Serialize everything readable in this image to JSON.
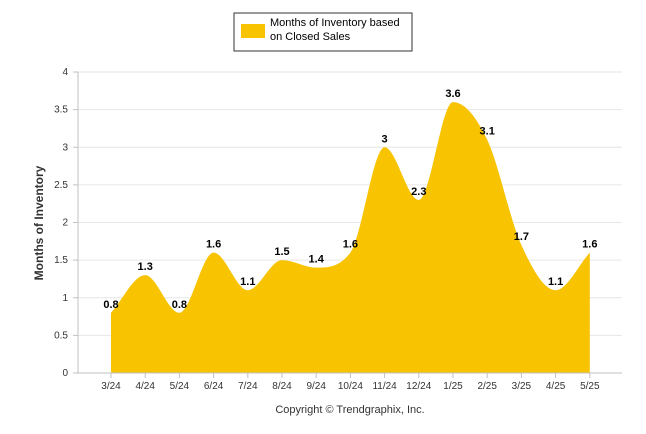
{
  "chart_data": {
    "type": "area",
    "categories": [
      "3/24",
      "4/24",
      "5/24",
      "6/24",
      "7/24",
      "8/24",
      "9/24",
      "10/24",
      "11/24",
      "12/24",
      "1/25",
      "2/25",
      "3/25",
      "4/25",
      "5/25"
    ],
    "series": [
      {
        "name": "Months of Inventory based on Closed Sales",
        "values": [
          0.8,
          1.3,
          0.8,
          1.6,
          1.1,
          1.5,
          1.4,
          1.6,
          3,
          2.3,
          3.6,
          3.1,
          1.7,
          1.1,
          1.6
        ]
      }
    ],
    "data_labels": [
      "0.8",
      "1.3",
      "0.8",
      "1.6",
      "1.1",
      "1.5",
      "1.4",
      "1.6",
      "3",
      "2.3",
      "3.6",
      "3.1",
      "1.7",
      "1.1",
      "1.6"
    ],
    "yticks": [
      0,
      0.5,
      1,
      1.5,
      2,
      2.5,
      3,
      3.5,
      4
    ],
    "ytick_labels": [
      "0",
      "0.5",
      "1",
      "1.5",
      "2",
      "2.5",
      "3",
      "3.5",
      "4"
    ],
    "ylim": [
      0,
      4
    ],
    "xlabel": "",
    "ylabel": "Months of Inventory",
    "legend": {
      "position": "top-center",
      "line1": "Months of Inventory based",
      "line2": "on Closed Sales"
    },
    "grid": true,
    "footer": "Copyright © Trendgraphix, Inc.",
    "colors": {
      "area": "#f8c300",
      "grid": "#e6e6e6",
      "axis": "#c0c0c0"
    }
  }
}
